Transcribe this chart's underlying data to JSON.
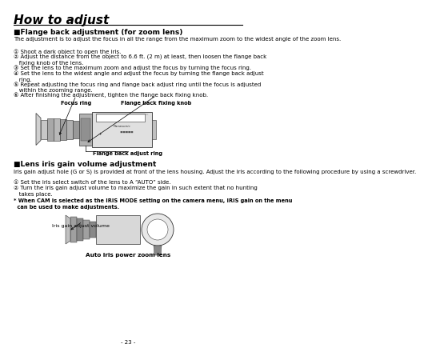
{
  "title": "How to adjust",
  "bg_color": "#ffffff",
  "section1_header": "■Flange back adjustment (for zoom lens)",
  "section1_intro": "The adjustment is to adjust the focus in all the range from the maximum zoom to the widest angle of the zoom lens.",
  "section1_steps": [
    "① Shoot a dark object to open the iris.",
    "② Adjust the distance from the object to 6.6 ft. (2 m) at least, then loosen the flange back\n   fixing knob of the lens.",
    "③ Set the lens to the maximum zoom and adjust the focus by turning the focus ring.",
    "④ Set the lens to the widest angle and adjust the focus by turning the flange back adjust\n   ring.",
    "⑤ Repeat adjusting the focus ring and flange back adjust ring until the focus is adjusted\n   within the zooming range.",
    "⑥ After finishing the adjustment, tighten the flange back fixing knob."
  ],
  "label_focus_ring": "Focus ring",
  "label_flange_fixing": "Flange back fixing knob",
  "label_flange_ring": "Flange back adjust ring",
  "section2_header": "■Lens iris gain volume adjustment",
  "section2_intro": "Iris gain adjust hole (G or S) is provided at front of the lens housing. Adjust the iris according to the following procedure by using a screwdriver.",
  "section2_steps": [
    "① Set the iris select switch of the lens to A “AUTO” side.",
    "② Turn the iris gain adjust volume to maximize the gain in such extent that no hunting\n   takes place."
  ],
  "section2_note": "* When CAM is selected as the IRIS MODE setting on the camera menu, IRIS gain on the menu\n  can be used to make adjustments.",
  "label_iris_gain": "Iris gain adjust volume",
  "caption_iris": "Auto iris power zoom lens",
  "page_number": "- 23 -"
}
